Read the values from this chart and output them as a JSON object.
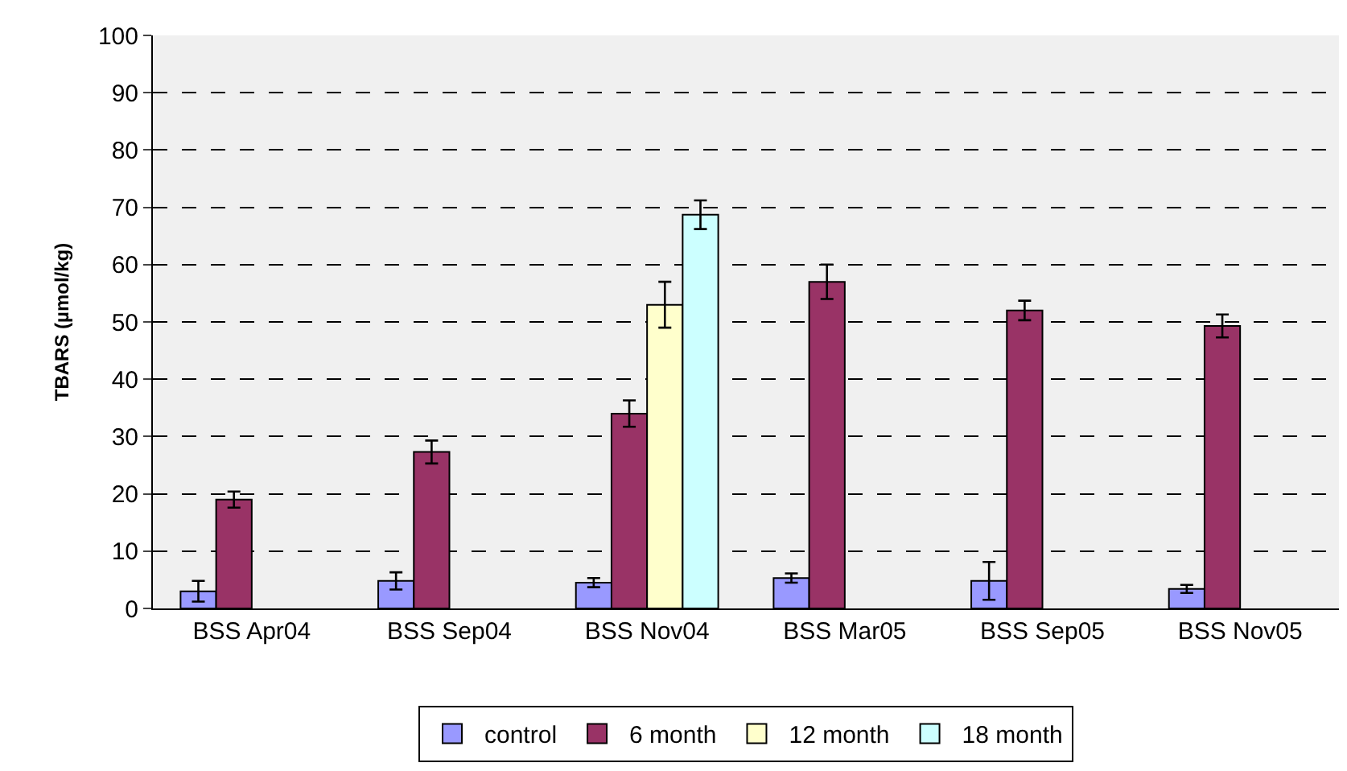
{
  "chart_data": {
    "type": "bar",
    "ylabel": "TBARS (µmol/kg)",
    "categories": [
      "BSS Apr04",
      "BSS Sep04",
      "BSS Nov04",
      "BSS Mar05",
      "BSS Sep05",
      "BSS Nov05"
    ],
    "series": [
      {
        "name": "control",
        "color": "#9999ff",
        "values": [
          3,
          4.8,
          4.5,
          5.3,
          4.8,
          3.4
        ],
        "errors": [
          1.8,
          1.5,
          0.8,
          0.8,
          3.3,
          0.7
        ]
      },
      {
        "name": "6 month",
        "color": "#993366",
        "values": [
          19,
          27.3,
          34,
          57,
          52,
          49.3
        ],
        "errors": [
          1.4,
          2,
          2.3,
          3,
          1.7,
          2
        ]
      },
      {
        "name": "12 month",
        "color": "#ffffcc",
        "values": [
          null,
          null,
          53,
          null,
          null,
          null
        ],
        "errors": [
          null,
          null,
          4,
          null,
          null,
          null
        ]
      },
      {
        "name": "18 month",
        "color": "#ccffff",
        "values": [
          null,
          null,
          68.7,
          null,
          null,
          null
        ],
        "errors": [
          null,
          null,
          2.5,
          null,
          null,
          null
        ]
      }
    ],
    "ylim": [
      0,
      100
    ],
    "yticks": [
      0,
      10,
      20,
      30,
      40,
      50,
      60,
      70,
      80,
      90,
      100
    ],
    "grid": "y",
    "legend": "bottom"
  }
}
